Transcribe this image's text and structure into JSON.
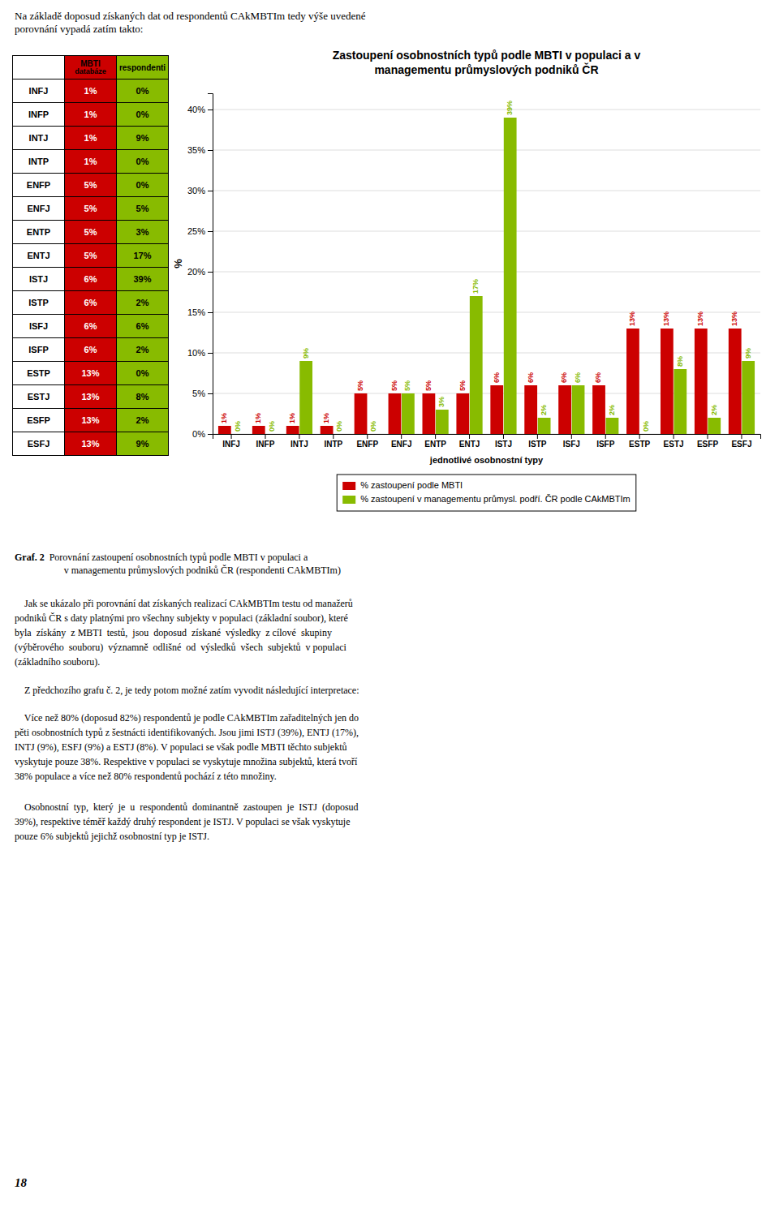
{
  "intro_text": "Na základě doposud získaných dat od respondentů CAkMBTIm tedy výše uvedené\nporovnání vypadá zatím takto:",
  "table": {
    "headers": [
      [
        "MBTI",
        "databáze"
      ],
      [
        "respondenti"
      ]
    ]
  },
  "chart_data": {
    "type": "bar",
    "title": "Zastoupení osobnostních typů podle MBTI v populaci a v\nmanagementu průmyslových podniků ČR",
    "xlabel": "jednotlivé osobnostní typy",
    "ylabel": "%",
    "categories": [
      "INFJ",
      "INFP",
      "INTJ",
      "INTP",
      "ENFP",
      "ENFJ",
      "ENTP",
      "ENTJ",
      "ISTJ",
      "ISTP",
      "ISFJ",
      "ISFP",
      "ESTP",
      "ESTJ",
      "ESFP",
      "ESFJ"
    ],
    "series": [
      {
        "name": "% zastoupení podle MBTI",
        "color": "#CC0000",
        "values": [
          1,
          1,
          1,
          1,
          5,
          5,
          5,
          5,
          6,
          6,
          6,
          6,
          13,
          13,
          13,
          13
        ],
        "value_labels": [
          "1%",
          "1%",
          "1%",
          "1%",
          "5%",
          "5%",
          "5%",
          "5%",
          "6%",
          "6%",
          "6%",
          "6%",
          "13%",
          "13%",
          "13%",
          "13%"
        ]
      },
      {
        "name": "% zastoupení v managementu průmysl. podří. ČR podle CAkMBTIm",
        "color": "#88BB00",
        "values": [
          0,
          0,
          9,
          0,
          0,
          5,
          3,
          17,
          39,
          2,
          6,
          2,
          0,
          8,
          2,
          9
        ],
        "value_labels": [
          "0%",
          "0%",
          "9%",
          "0%",
          "0%",
          "5%",
          "3%",
          "17%",
          "39%",
          "2%",
          "6%",
          "2%",
          "0%",
          "8%",
          "2%",
          "9%"
        ]
      }
    ],
    "ylim": [
      0,
      42
    ],
    "yticks": [
      {
        "value": 0,
        "label": "0%"
      },
      {
        "value": 5,
        "label": "5%"
      },
      {
        "value": 10,
        "label": "10%"
      },
      {
        "value": 15,
        "label": "15%"
      },
      {
        "value": 20,
        "label": "20%"
      },
      {
        "value": 25,
        "label": "25%"
      },
      {
        "value": 30,
        "label": "30%"
      },
      {
        "value": 35,
        "label": "35%"
      },
      {
        "value": 40,
        "label": "40%"
      }
    ],
    "grid": true,
    "legend": "bottom",
    "data_labels": true
  },
  "caption": {
    "label": "Graf. 2",
    "text": "  Porovnání zastoupení osobnostních typů podle MBTI v populaci a\n        v managementu průmyslových podniků ČR (respondenti CAkMBTIm)"
  },
  "body_texts": [
    "    Jak se ukázalo při porovnání dat získaných realizací CAkMBTIm testu od manažerů\npodniků ČR s daty platnými pro všechny subjekty v populaci (základní soubor), které\nbyla  získány  z MBTI  testů,  jsou  doposud  získané  výsledky  z cílové  skupiny\n(výběrového  souboru)  významně  odlišné  od  výsledků  všech  subjektů  v populaci\n(základního souboru).",
    "    Z předchozího grafu č. 2, je tedy potom možné zatím vyvodit následující interpretace:",
    "    Více než 80% (doposud 82%) respondentů je podle CAkMBTIm zařaditelných jen do\npěti osobnostních typů z šestnácti identifikovaných. Jsou jimi ISTJ (39%), ENTJ (17%),\nINTJ (9%), ESFJ (9%) a ESTJ (8%). V populaci se však podle MBTI těchto subjektů\nvyskytuje pouze 38%. Respektive v populaci se vyskytuje množina subjektů, která tvoří\n38% populace a více než 80% respondentů pochází z této množiny.",
    "    Osobnostní  typ,  který  je  u  respondentů  dominantně  zastoupen  je  ISTJ  (doposud\n39%), respektive téměř každý druhý respondent je ISTJ. V populaci se však vyskytuje\npouze 6% subjektů jejichž osobnostní typ je ISTJ."
  ],
  "page_number": "18"
}
